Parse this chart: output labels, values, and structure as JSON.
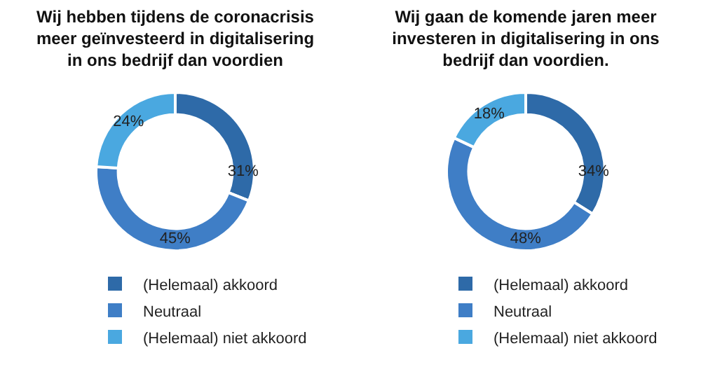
{
  "chart_data": [
    {
      "type": "donut",
      "title": "Wij hebben tijdens de coronacrisis meer geïnvesteerd in digitalisering in ons bedrijf dan voordien",
      "categories": [
        "(Helemaal) akkoord",
        "Neutraal",
        "(Helemaal) niet akkoord"
      ],
      "values": [
        31,
        45,
        24
      ],
      "value_labels": [
        "31%",
        "45%",
        "24%"
      ],
      "colors": [
        "#2e6aa8",
        "#3f7ec6",
        "#4aa8e0"
      ],
      "legend": "bottom"
    },
    {
      "type": "donut",
      "title": "Wij gaan de komende jaren meer investeren in digitalisering in ons bedrijf dan voordien.",
      "categories": [
        "(Helemaal) akkoord",
        "Neutraal",
        "(Helemaal) niet akkoord"
      ],
      "values": [
        34,
        48,
        18
      ],
      "value_labels": [
        "34%",
        "48%",
        "18%"
      ],
      "colors": [
        "#2e6aa8",
        "#3f7ec6",
        "#4aa8e0"
      ],
      "legend": "bottom"
    }
  ]
}
